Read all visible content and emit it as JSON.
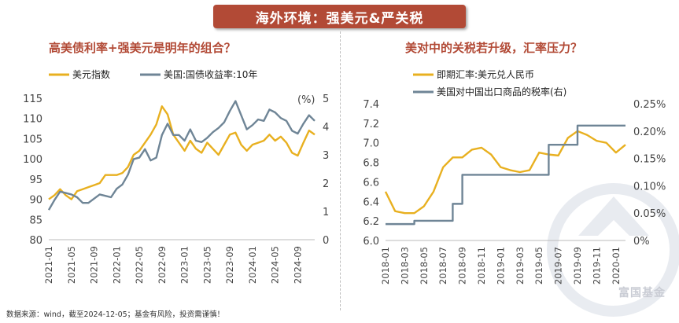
{
  "banner": {
    "title": "海外环境：强美元&严关税"
  },
  "left_chart": {
    "title": "高美债利率+强美元是明年的组合？",
    "unit_label": "(%)",
    "legend": [
      "美元指数",
      "美国:国债收益率:10年"
    ]
  },
  "right_chart": {
    "title": "美对中的关税若升级，汇率压力？",
    "legend": [
      "即期汇率:美元兑人民币",
      "美国对中国出口商品的税率(右)"
    ]
  },
  "footer": {
    "text": "数据来源：wind，截至2024-12-05；基金有风险，投资需谨慎！"
  },
  "watermark": {
    "text": "富国基金"
  },
  "colors": {
    "accent": "#b24a36",
    "gold": "#e8b020",
    "slate": "#6f8596"
  },
  "chart_data": [
    {
      "type": "line",
      "title": "高美债利率+强美元是明年的组合？",
      "x_ticks": [
        "2021-01",
        "2021-05",
        "2021-09",
        "2022-01",
        "2022-05",
        "2022-09",
        "2023-01",
        "2023-05",
        "2023-09",
        "2024-01",
        "2024-05",
        "2024-09"
      ],
      "y_left": {
        "ticks": [
          80,
          85,
          90,
          95,
          100,
          105,
          110,
          115
        ],
        "range": [
          80,
          115
        ]
      },
      "y_right": {
        "ticks": [
          0,
          1,
          2,
          3,
          4,
          5
        ],
        "range": [
          0,
          5
        ],
        "unit": "(%)"
      },
      "series": [
        {
          "name": "美元指数",
          "axis": "left",
          "color": "#e8b020",
          "x": [
            "2021-01",
            "2021-02",
            "2021-03",
            "2021-04",
            "2021-05",
            "2021-06",
            "2021-07",
            "2021-08",
            "2021-09",
            "2021-10",
            "2021-11",
            "2021-12",
            "2022-01",
            "2022-02",
            "2022-03",
            "2022-04",
            "2022-05",
            "2022-06",
            "2022-07",
            "2022-08",
            "2022-09",
            "2022-10",
            "2022-11",
            "2022-12",
            "2023-01",
            "2023-02",
            "2023-03",
            "2023-04",
            "2023-05",
            "2023-06",
            "2023-07",
            "2023-08",
            "2023-09",
            "2023-10",
            "2023-11",
            "2023-12",
            "2024-01",
            "2024-02",
            "2024-03",
            "2024-04",
            "2024-05",
            "2024-06",
            "2024-07",
            "2024-08",
            "2024-09",
            "2024-10",
            "2024-11",
            "2024-12"
          ],
          "values": [
            90,
            91,
            92.5,
            91,
            90,
            92,
            92.5,
            93,
            93.5,
            94,
            96,
            96,
            96,
            96.5,
            98,
            101,
            102,
            104,
            106,
            108.5,
            113,
            111,
            106,
            104,
            102,
            104.5,
            102.5,
            101.5,
            104,
            102.5,
            101,
            103.5,
            106,
            106.5,
            103.5,
            102,
            103.5,
            104,
            104.5,
            106,
            104.5,
            105.5,
            104,
            101.5,
            100.8,
            104,
            107,
            106
          ]
        },
        {
          "name": "美国:国债收益率:10年",
          "axis": "right",
          "color": "#6f8596",
          "x": [
            "2021-01",
            "2021-02",
            "2021-03",
            "2021-04",
            "2021-05",
            "2021-06",
            "2021-07",
            "2021-08",
            "2021-09",
            "2021-10",
            "2021-11",
            "2021-12",
            "2022-01",
            "2022-02",
            "2022-03",
            "2022-04",
            "2022-05",
            "2022-06",
            "2022-07",
            "2022-08",
            "2022-09",
            "2022-10",
            "2022-11",
            "2022-12",
            "2023-01",
            "2023-02",
            "2023-03",
            "2023-04",
            "2023-05",
            "2023-06",
            "2023-07",
            "2023-08",
            "2023-09",
            "2023-10",
            "2023-11",
            "2023-12",
            "2024-01",
            "2024-02",
            "2024-03",
            "2024-04",
            "2024-05",
            "2024-06",
            "2024-07",
            "2024-08",
            "2024-09",
            "2024-10",
            "2024-11",
            "2024-12"
          ],
          "values": [
            1.05,
            1.4,
            1.7,
            1.65,
            1.6,
            1.5,
            1.3,
            1.3,
            1.45,
            1.6,
            1.55,
            1.5,
            1.8,
            1.95,
            2.3,
            2.85,
            2.9,
            3.2,
            2.8,
            2.9,
            3.7,
            4.1,
            3.7,
            3.7,
            3.5,
            3.9,
            3.5,
            3.45,
            3.6,
            3.8,
            3.95,
            4.15,
            4.55,
            4.9,
            4.4,
            3.9,
            4.05,
            4.25,
            4.2,
            4.6,
            4.5,
            4.3,
            4.2,
            3.85,
            3.75,
            4.1,
            4.4,
            4.2
          ]
        }
      ]
    },
    {
      "type": "line",
      "title": "美对中的关税若升级，汇率压力？",
      "x_ticks": [
        "2018-01",
        "2018-03",
        "2018-05",
        "2018-07",
        "2018-09",
        "2018-11",
        "2019-01",
        "2019-03",
        "2019-05",
        "2019-07",
        "2019-09",
        "2019-11",
        "2020-01"
      ],
      "y_left": {
        "ticks": [
          6.0,
          6.2,
          6.4,
          6.6,
          6.8,
          7.0,
          7.2,
          7.4
        ],
        "range": [
          6.0,
          7.4
        ]
      },
      "y_right": {
        "ticks": [
          "0%",
          "0.05%",
          "0.10%",
          "0.15%",
          "0.20%",
          "0.25%"
        ],
        "range": [
          0,
          0.25
        ]
      },
      "series": [
        {
          "name": "即期汇率:美元兑人民币",
          "axis": "left",
          "color": "#e8b020",
          "x": [
            "2018-01",
            "2018-02",
            "2018-03",
            "2018-04",
            "2018-05",
            "2018-06",
            "2018-07",
            "2018-08",
            "2018-09",
            "2018-10",
            "2018-11",
            "2018-12",
            "2019-01",
            "2019-02",
            "2019-03",
            "2019-04",
            "2019-05",
            "2019-06",
            "2019-07",
            "2019-08",
            "2019-09",
            "2019-10",
            "2019-11",
            "2019-12",
            "2020-01",
            "2020-02"
          ],
          "values": [
            6.5,
            6.3,
            6.28,
            6.28,
            6.35,
            6.5,
            6.75,
            6.85,
            6.85,
            6.93,
            6.95,
            6.88,
            6.75,
            6.72,
            6.7,
            6.72,
            6.9,
            6.88,
            6.87,
            7.05,
            7.12,
            7.08,
            7.02,
            7.0,
            6.9,
            6.98
          ]
        },
        {
          "name": "美国对中国出口商品的税率(右)",
          "axis": "right",
          "color": "#6f8596",
          "x": [
            "2018-01",
            "2018-03",
            "2018-04",
            "2018-07",
            "2018-08",
            "2018-09",
            "2019-05",
            "2019-06",
            "2019-09",
            "2020-02"
          ],
          "values": [
            0.03,
            0.03,
            0.036,
            0.036,
            0.067,
            0.12,
            0.12,
            0.175,
            0.21,
            0.21
          ]
        }
      ]
    }
  ]
}
